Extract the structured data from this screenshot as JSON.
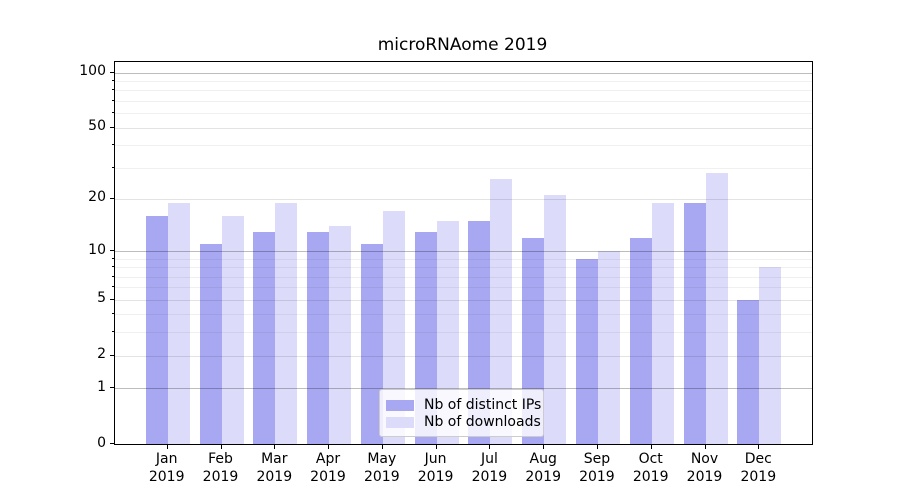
{
  "chart_data": {
    "type": "bar",
    "title": "microRNAome 2019",
    "categories": [
      "Jan 2019",
      "Feb 2019",
      "Mar 2019",
      "Apr 2019",
      "May 2019",
      "Jun 2019",
      "Jul 2019",
      "Aug 2019",
      "Sep 2019",
      "Oct 2019",
      "Nov 2019",
      "Dec 2019"
    ],
    "x_tick_months": [
      "Jan",
      "Feb",
      "Mar",
      "Apr",
      "May",
      "Jun",
      "Jul",
      "Aug",
      "Sep",
      "Oct",
      "Nov",
      "Dec"
    ],
    "x_tick_year": "2019",
    "series": [
      {
        "name": "Nb of distinct IPs",
        "color": "#a8a8f2",
        "values": [
          16,
          11,
          13,
          13,
          11,
          13,
          15,
          12,
          9,
          12,
          19,
          5
        ]
      },
      {
        "name": "Nb of downloads",
        "color": "#dcdcfa",
        "values": [
          19,
          16,
          19,
          14,
          17,
          15,
          26,
          21,
          10,
          19,
          28,
          8
        ]
      }
    ],
    "xlabel": "",
    "ylabel": "",
    "yscale": "log1p",
    "ylim": [
      0,
      113
    ],
    "yticks": [
      0,
      1,
      2,
      5,
      10,
      20,
      50,
      100
    ],
    "yticks_minor": [
      3,
      4,
      6,
      7,
      8,
      9,
      30,
      40,
      60,
      70,
      80,
      90
    ],
    "grid": "both",
    "legend_position": "lower center",
    "background_color": "#ffffff",
    "text_color": "#000000"
  }
}
